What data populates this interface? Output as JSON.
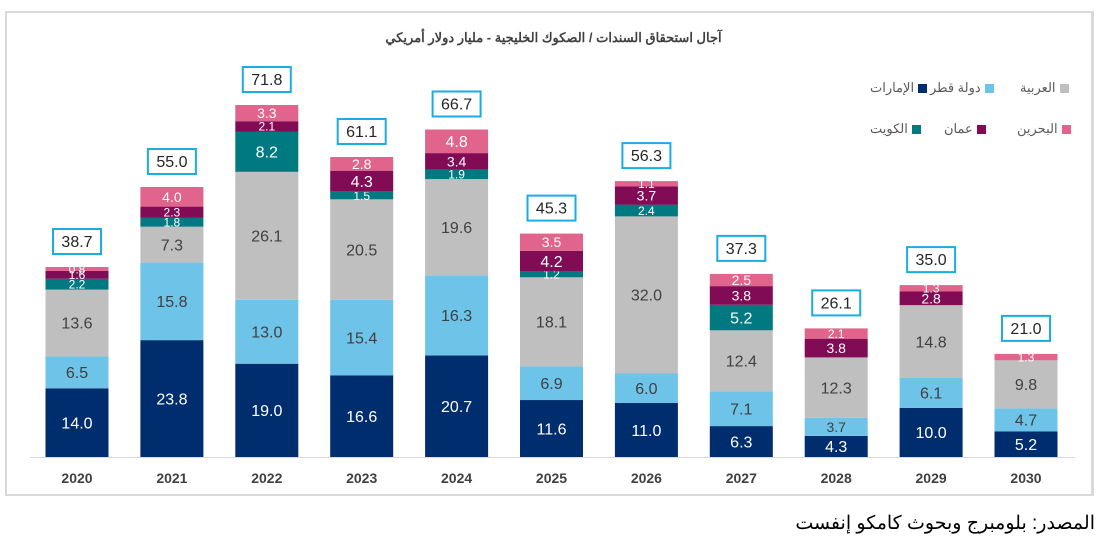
{
  "chart_data": {
    "type": "bar",
    "stacked": true,
    "title": "آجال استحقاق السندات / الصكوك الخليجية - مليار دولار أمريكي",
    "xlabel": "",
    "ylabel": "",
    "ylim": [
      0,
      75
    ],
    "grid": false,
    "legend_position": "top-right",
    "categories": [
      "2020",
      "2021",
      "2022",
      "2023",
      "2024",
      "2025",
      "2026",
      "2027",
      "2028",
      "2029",
      "2030"
    ],
    "series": [
      {
        "name": "الإمارات",
        "color": "#002D6E",
        "label_color": "light",
        "values": [
          14.0,
          23.8,
          19.0,
          16.6,
          20.7,
          11.6,
          11.0,
          6.3,
          4.3,
          10.0,
          5.2
        ]
      },
      {
        "name": "دولة قطر",
        "color": "#6EC3E8",
        "label_color": "dark",
        "values": [
          6.5,
          15.8,
          13.0,
          15.4,
          16.3,
          6.9,
          6.0,
          7.1,
          3.7,
          6.1,
          4.7
        ]
      },
      {
        "name": "العربية",
        "color": "#BFBFBF",
        "label_color": "dark",
        "values": [
          13.6,
          7.3,
          26.1,
          20.5,
          19.6,
          18.1,
          32.0,
          12.4,
          12.3,
          14.8,
          9.8
        ]
      },
      {
        "name": "الكويت",
        "color": "#007A80",
        "label_color": "light",
        "values": [
          2.2,
          1.8,
          8.2,
          1.5,
          1.9,
          1.2,
          2.4,
          5.2,
          0,
          0,
          0
        ]
      },
      {
        "name": "عمان",
        "color": "#820B55",
        "label_color": "light",
        "values": [
          1.6,
          2.3,
          2.1,
          4.3,
          3.4,
          4.2,
          3.7,
          3.8,
          3.8,
          2.8,
          0
        ]
      },
      {
        "name": "البحرين",
        "color": "#E0648C",
        "label_color": "light",
        "values": [
          0.8,
          4.0,
          3.3,
          2.8,
          4.8,
          3.5,
          1.1,
          2.5,
          2.1,
          1.3,
          1.3
        ]
      }
    ],
    "totals": [
      "38.7",
      "55.0",
      "71.8",
      "61.1",
      "66.7",
      "45.3",
      "56.3",
      "37.3",
      "26.1",
      "35.0",
      "21.0"
    ],
    "total_box_color": "#1AADE4"
  },
  "legend": {
    "row1": [
      {
        "name": "العربية",
        "color": "#BFBFBF"
      },
      {
        "name": "دولة قطر",
        "color": "#6EC3E8"
      },
      {
        "name": "الإمارات",
        "color": "#002D6E"
      }
    ],
    "row2": [
      {
        "name": "البحرين",
        "color": "#E0648C"
      },
      {
        "name": "عمان",
        "color": "#820B55"
      },
      {
        "name": "الكويت",
        "color": "#007A80"
      }
    ]
  },
  "source": "المصدر: بلومبرج وبحوث كامكو إنفست"
}
